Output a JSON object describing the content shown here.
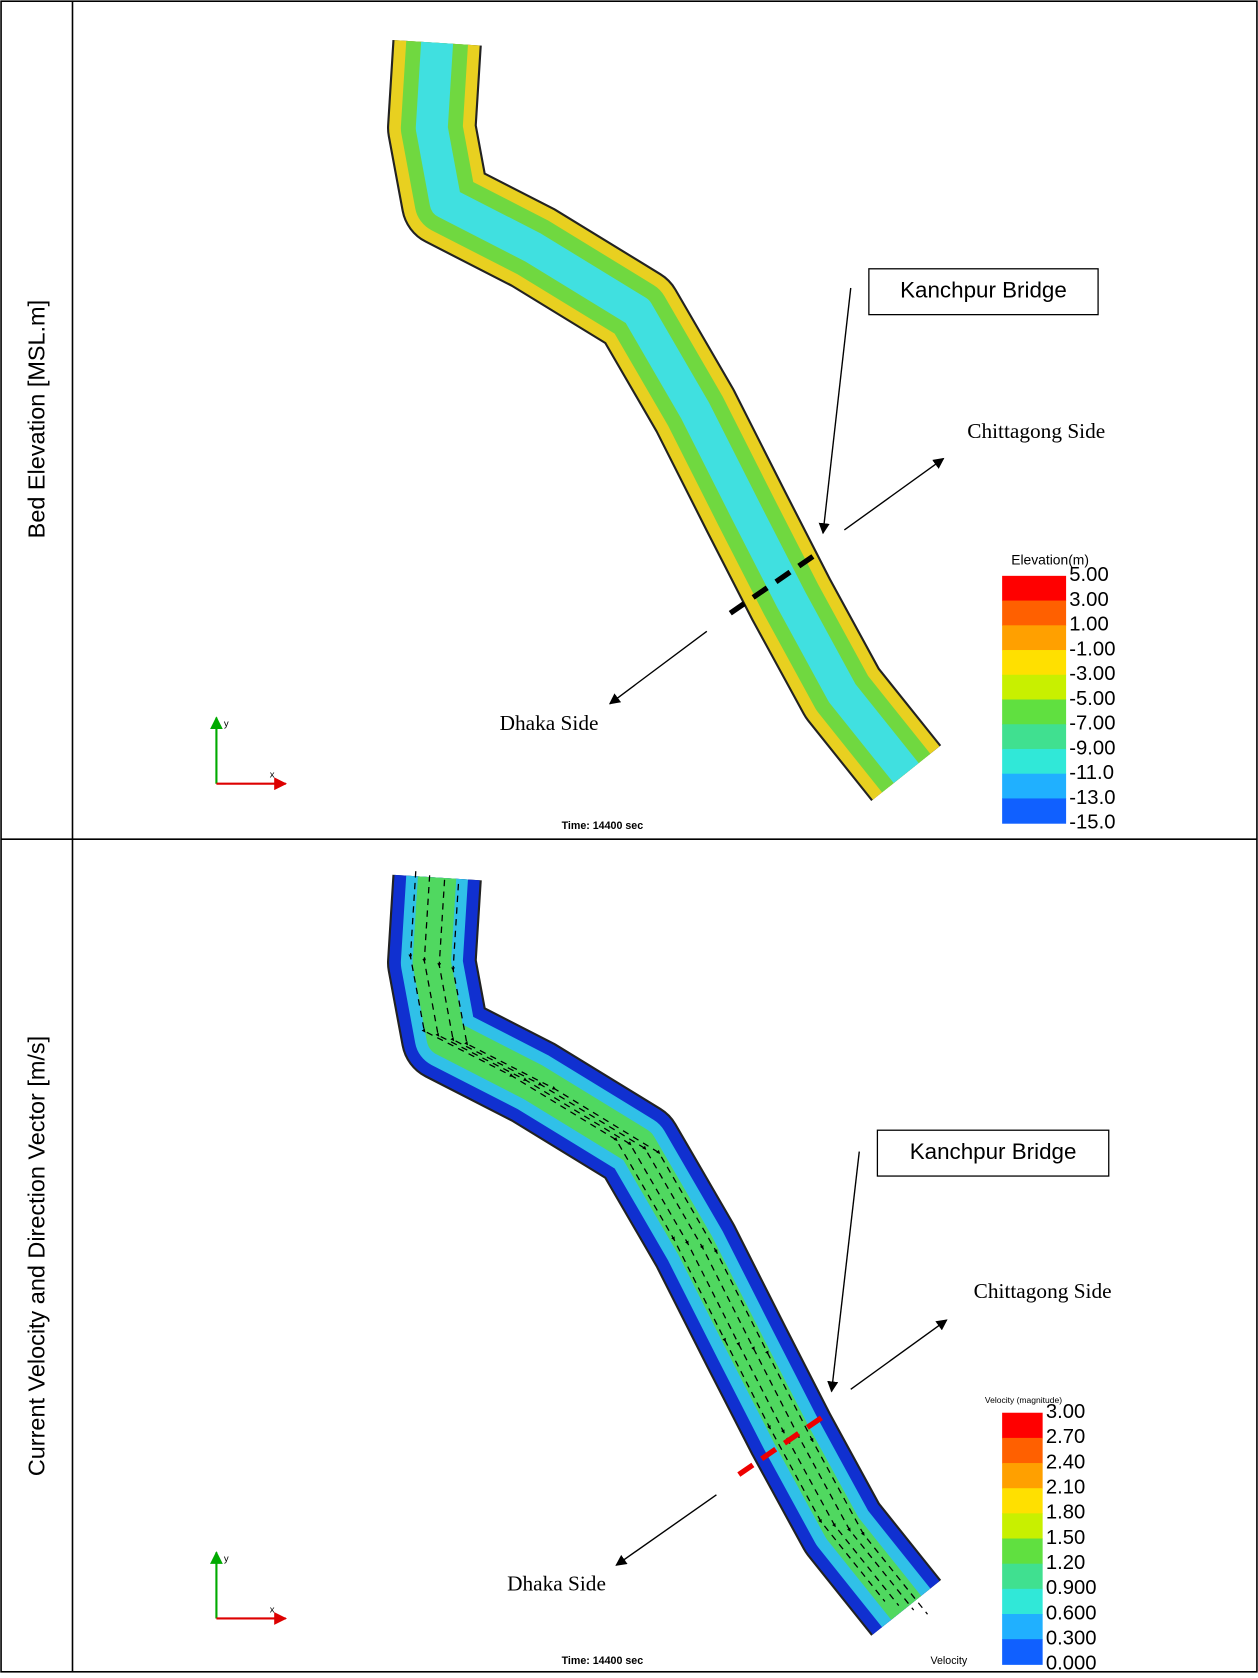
{
  "panels": [
    {
      "row_label": "Bed Elevation [MSL.m]",
      "bridge": "Kanchpur Bridge",
      "east_side": "Chittagong Side",
      "west_side": "Dhaka Side",
      "legend_title": "Elevation(m)",
      "legend_labels": [
        "5.00",
        "3.00",
        "1.00",
        "-1.00",
        "-3.00",
        "-5.00",
        "-7.00",
        "-9.00",
        "-11.0",
        "-13.0",
        "-15.0"
      ],
      "time": "Time: 14400 sec",
      "axis_y": "y",
      "axis_x": "x"
    },
    {
      "row_label": "Current Velocity and Direction Vector [m/s]",
      "bridge": "Kanchpur Bridge",
      "east_side": "Chittagong Side",
      "west_side": "Dhaka Side",
      "legend_title": "Velocity (magnitude)",
      "legend_labels": [
        "3.00",
        "2.70",
        "2.40",
        "2.10",
        "1.80",
        "1.50",
        "1.20",
        "0.900",
        "0.600",
        "0.300",
        "0.000"
      ],
      "time": "Time: 14400 sec",
      "axis_y": "y",
      "axis_x": "x",
      "vector_label": "Velocity"
    }
  ]
}
